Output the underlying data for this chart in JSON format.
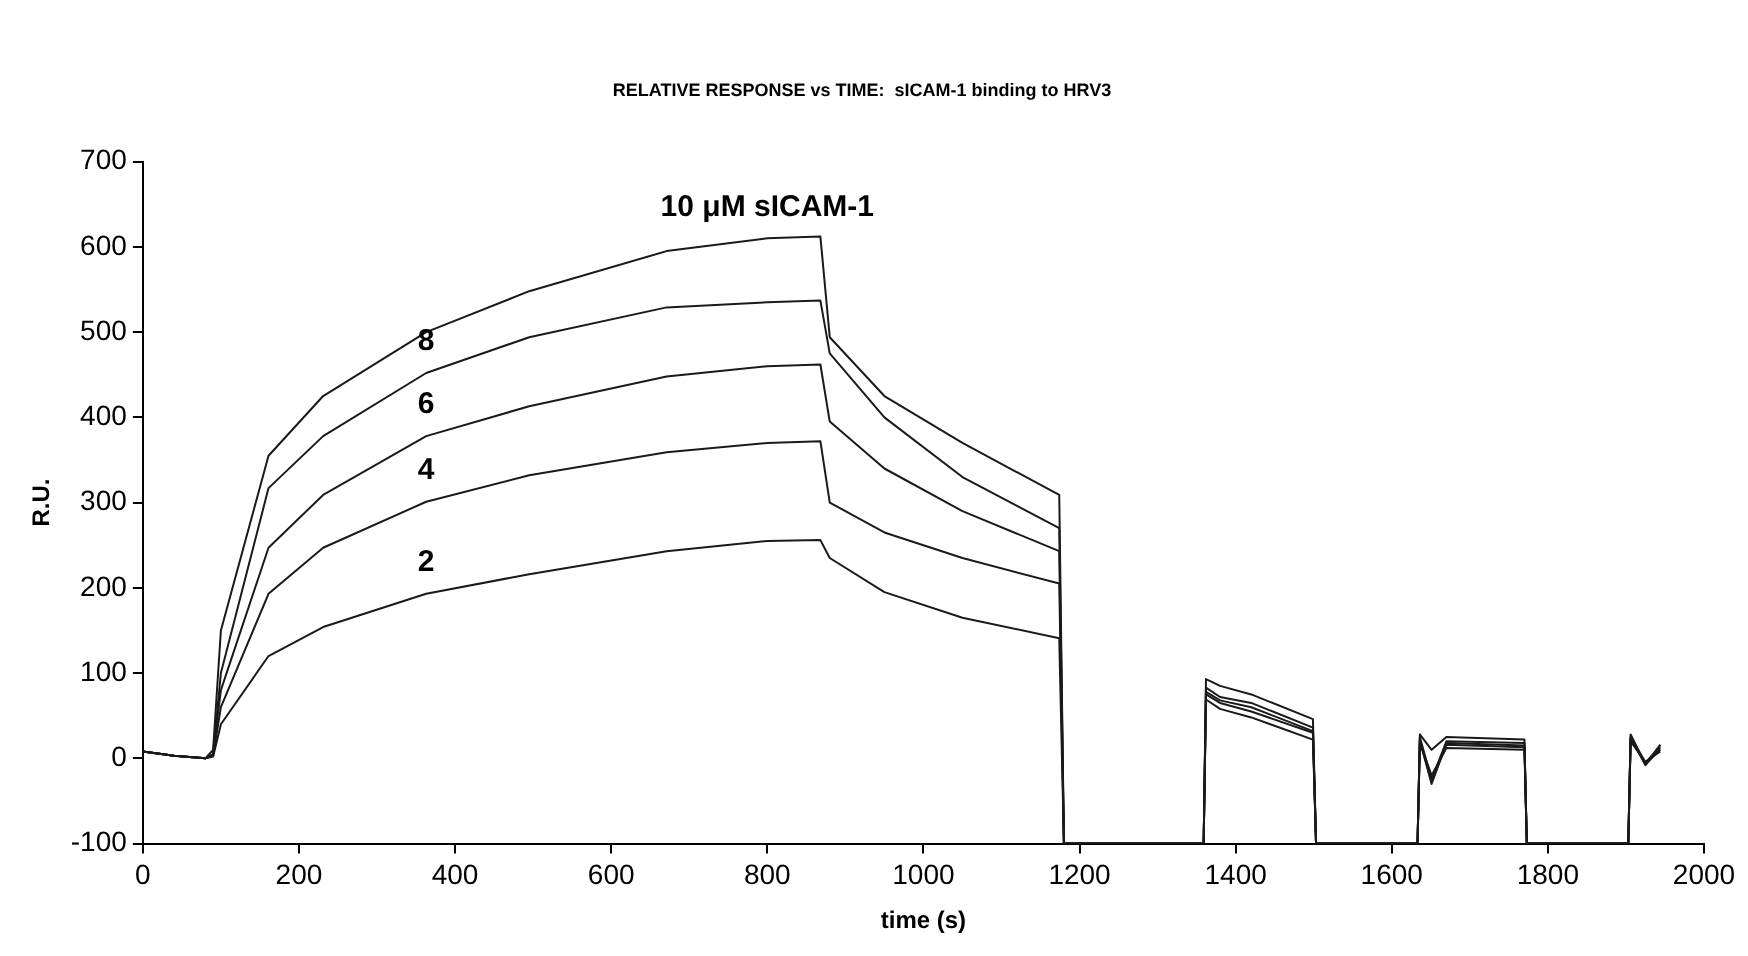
{
  "chart_data": {
    "type": "line",
    "title": "RELATIVE RESPONSE vs TIME:  sICAM-1 binding to HRV3",
    "xlabel": "time (s)",
    "ylabel": "R.U.",
    "x": [
      0,
      40,
      80,
      90,
      100,
      161,
      231,
      363,
      495,
      671,
      800,
      868,
      880,
      950,
      1050,
      1174,
      1180,
      1359,
      1362,
      1380,
      1420,
      1499,
      1503,
      1633,
      1636,
      1651,
      1670,
      1770,
      1773,
      1903,
      1906,
      1925,
      1944
    ],
    "series": [
      {
        "name": "10 μM sICAM-1",
        "color": "#1a1a1a",
        "values": [
          8,
          3,
          0,
          10,
          150,
          355,
          425,
          500,
          548,
          595,
          610,
          612,
          494,
          425,
          370,
          309,
          -100,
          -100,
          93,
          85,
          75,
          46,
          -100,
          -100,
          28,
          10,
          25,
          22,
          -100,
          -100,
          28,
          -7,
          16
        ]
      },
      {
        "name": "8",
        "color": "#1a1a1a",
        "values": [
          8,
          3,
          0,
          5,
          100,
          317,
          378,
          452,
          494,
          529,
          535,
          537,
          475,
          400,
          330,
          270,
          -100,
          -100,
          83,
          72,
          65,
          36,
          -100,
          -100,
          25,
          -25,
          20,
          18,
          -100,
          -100,
          25,
          -5,
          14
        ]
      },
      {
        "name": "6",
        "color": "#1a1a1a",
        "values": [
          8,
          3,
          0,
          5,
          80,
          247,
          309,
          378,
          413,
          448,
          460,
          462,
          395,
          340,
          290,
          243,
          -100,
          -100,
          78,
          68,
          60,
          32,
          -100,
          -100,
          22,
          -30,
          18,
          15,
          -100,
          -100,
          24,
          -8,
          12
        ]
      },
      {
        "name": "4",
        "color": "#1a1a1a",
        "values": [
          8,
          3,
          0,
          3,
          60,
          193,
          247,
          301,
          332,
          359,
          370,
          372,
          300,
          265,
          235,
          205,
          -100,
          -100,
          75,
          65,
          55,
          30,
          -100,
          -100,
          20,
          -28,
          16,
          13,
          -100,
          -100,
          22,
          -6,
          10
        ]
      },
      {
        "name": "2",
        "color": "#1a1a1a",
        "values": [
          8,
          3,
          0,
          2,
          40,
          120,
          154,
          193,
          216,
          243,
          255,
          256,
          235,
          195,
          165,
          141,
          -100,
          -100,
          69,
          58,
          48,
          22,
          -100,
          -100,
          18,
          -20,
          12,
          10,
          -100,
          -100,
          20,
          -4,
          8
        ]
      }
    ],
    "xlim": [
      0,
      2000
    ],
    "xticks": [
      0,
      200,
      400,
      600,
      800,
      1000,
      1200,
      1400,
      1600,
      1800,
      2000
    ],
    "ylim": [
      -100,
      700
    ],
    "yticks": [
      -100,
      0,
      100,
      200,
      300,
      400,
      500,
      600,
      700
    ],
    "grid": false,
    "legend": false,
    "marker": "none",
    "line_style": "solid"
  }
}
